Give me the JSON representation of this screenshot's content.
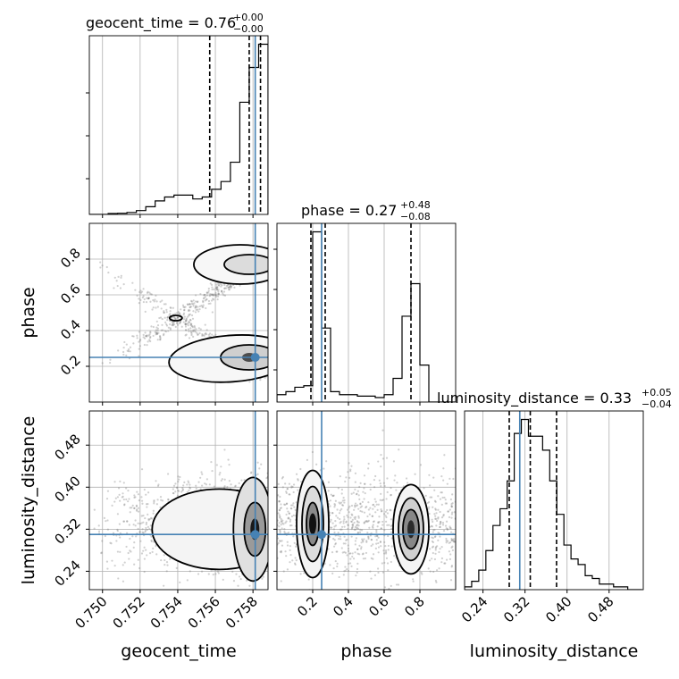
{
  "chart_data": {
    "type": "corner",
    "parameters": [
      "geocent_time",
      "phase",
      "luminosity_distance"
    ],
    "grid": true,
    "colors": {
      "truth": "#4682b4",
      "hist": "#000000",
      "density": "#000000"
    },
    "truth": {
      "geocent_time": 0.75812,
      "phase": 0.25,
      "luminosity_distance": 0.31
    },
    "titles": [
      {
        "param": "geocent_time",
        "text": "geocent_time = 0.76",
        "sup": "+0.00",
        "sub": "−0.00"
      },
      {
        "param": "phase",
        "text": "phase = 0.27",
        "sup": "+0.48",
        "sub": "−0.08"
      },
      {
        "param": "luminosity_distance",
        "text": "luminosity_distance = 0.33",
        "sup": "+0.05",
        "sub": "−0.04"
      }
    ],
    "axes": {
      "geocent_time": {
        "range": [
          0.7493,
          0.7588
        ],
        "ticks": [
          0.75,
          0.752,
          0.754,
          0.756,
          0.758
        ],
        "tick_labels": [
          "0.750",
          "0.752",
          "0.754",
          "0.756",
          "0.758"
        ],
        "label": "geocent_time"
      },
      "phase": {
        "range": [
          0.0,
          1.0
        ],
        "ticks": [
          0.2,
          0.4,
          0.6,
          0.8
        ],
        "tick_labels": [
          "0.2",
          "0.4",
          "0.6",
          "0.8"
        ],
        "label": "phase"
      },
      "luminosity_distance": {
        "range": [
          0.205,
          0.545
        ],
        "ticks": [
          0.24,
          0.32,
          0.4,
          0.48
        ],
        "tick_labels": [
          "0.24",
          "0.32",
          "0.40",
          "0.48"
        ],
        "label": "luminosity_distance"
      }
    },
    "histograms": {
      "geocent_time": {
        "bin_edges": [
          0.7493,
          0.7498,
          0.7503,
          0.7508,
          0.7513,
          0.7518,
          0.7523,
          0.7528,
          0.7533,
          0.7538,
          0.7543,
          0.7548,
          0.7553,
          0.7558,
          0.7563,
          0.7568,
          0.7573,
          0.7578,
          0.7583,
          0.7588
        ],
        "counts": [
          0,
          0,
          0.5,
          0.6,
          1,
          2,
          4,
          7,
          9,
          10,
          10,
          8,
          9,
          13,
          17,
          27,
          58,
          76,
          88
        ],
        "quantiles": [
          0.7557,
          0.7578,
          0.7584
        ]
      },
      "phase": {
        "bin_edges": [
          0.0,
          0.05,
          0.1,
          0.15,
          0.2,
          0.25,
          0.3,
          0.35,
          0.4,
          0.45,
          0.5,
          0.55,
          0.6,
          0.65,
          0.7,
          0.75,
          0.8,
          0.85,
          0.9,
          0.95,
          1.0
        ],
        "counts": [
          5,
          7,
          10,
          11,
          115,
          50,
          7,
          5,
          5,
          4,
          4,
          3,
          5,
          16,
          58,
          80,
          25,
          0,
          0,
          0
        ],
        "quantiles": [
          0.19,
          0.27,
          0.75
        ]
      },
      "luminosity_distance": {
        "bin_edges": [
          0.205,
          0.2185,
          0.232,
          0.2455,
          0.259,
          0.2725,
          0.286,
          0.2995,
          0.313,
          0.3265,
          0.34,
          0.3535,
          0.367,
          0.3805,
          0.394,
          0.4075,
          0.421,
          0.4345,
          0.448,
          0.4615,
          0.475,
          0.4885,
          0.502,
          0.5155,
          0.529,
          0.5425
        ],
        "counts": [
          1,
          3,
          7,
          14,
          23,
          29,
          39,
          56,
          61,
          55,
          55,
          50,
          39,
          27,
          16,
          11,
          9,
          5,
          4,
          2,
          2,
          1,
          1,
          0,
          0
        ],
        "quantiles": [
          0.29,
          0.33,
          0.38
        ]
      }
    },
    "pair_modes": {
      "phase_vs_geocent_time": [
        {
          "x": 0.7581,
          "y": 0.25
        },
        {
          "x": 0.7581,
          "y": 0.76
        },
        {
          "x": 0.7539,
          "y": 0.47
        }
      ],
      "luminosity_distance_vs_geocent_time": [
        {
          "x": 0.7581,
          "y": 0.32
        }
      ],
      "luminosity_distance_vs_phase": [
        {
          "x": 0.2,
          "y": 0.33
        },
        {
          "x": 0.75,
          "y": 0.32
        }
      ]
    }
  }
}
